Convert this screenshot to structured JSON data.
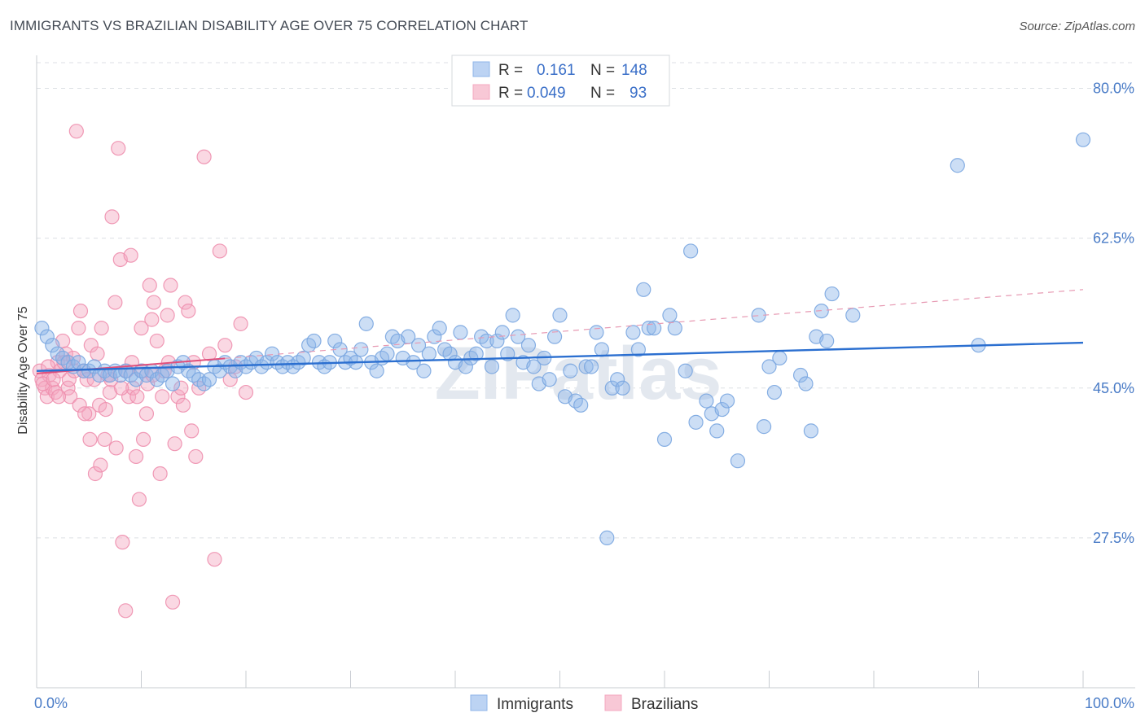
{
  "header": {
    "title": "IMMIGRANTS VS BRAZILIAN DISABILITY AGE OVER 75 CORRELATION CHART",
    "source": "Source: ZipAtlas.com"
  },
  "watermark": "ZIPatlas",
  "chart_data": {
    "type": "scatter",
    "title": "IMMIGRANTS VS BRAZILIAN DISABILITY AGE OVER 75 CORRELATION CHART",
    "xlabel": "",
    "ylabel": "Disability Age Over 75",
    "xlim": [
      0,
      100
    ],
    "ylim": [
      10,
      83
    ],
    "x_tick_labels": [
      "0.0%",
      "100.0%"
    ],
    "y_ticks": [
      27.5,
      45.0,
      62.5,
      80.0
    ],
    "y_tick_labels": [
      "27.5%",
      "45.0%",
      "62.5%",
      "80.0%"
    ],
    "grid": true,
    "legend_position": "bottom-center",
    "stats_box": {
      "rows": [
        {
          "r_label": "R =",
          "r_value": "0.161",
          "n_label": "N =",
          "n_value": "148"
        },
        {
          "r_label": "R =",
          "r_value": "0.049",
          "n_label": "N =",
          "n_value": "93"
        }
      ]
    },
    "series": [
      {
        "name": "Immigrants",
        "color": "#8fb6e8",
        "line_color": "#2b6fd0",
        "trend": {
          "x": [
            0,
            100
          ],
          "y": [
            47.0,
            50.3
          ],
          "style": "solid"
        },
        "points": [
          [
            0.5,
            52
          ],
          [
            1.0,
            51
          ],
          [
            1.5,
            50
          ],
          [
            2,
            49
          ],
          [
            2.5,
            48.5
          ],
          [
            3,
            48
          ],
          [
            3.5,
            47.5
          ],
          [
            4,
            48
          ],
          [
            4.5,
            47
          ],
          [
            5,
            47
          ],
          [
            5.5,
            47.5
          ],
          [
            6,
            46.5
          ],
          [
            6.5,
            47
          ],
          [
            7,
            46.5
          ],
          [
            7.5,
            47
          ],
          [
            8,
            46.5
          ],
          [
            8.5,
            47
          ],
          [
            9,
            46.5
          ],
          [
            9.5,
            46
          ],
          [
            10,
            47
          ],
          [
            10.5,
            46.5
          ],
          [
            11,
            47
          ],
          [
            11.5,
            46
          ],
          [
            12,
            46.5
          ],
          [
            12.5,
            47
          ],
          [
            13,
            45.5
          ],
          [
            13.5,
            47.5
          ],
          [
            14,
            48
          ],
          [
            14.5,
            47
          ],
          [
            15,
            46.5
          ],
          [
            15.5,
            46
          ],
          [
            16,
            45.5
          ],
          [
            16.5,
            46
          ],
          [
            17,
            47.5
          ],
          [
            17.5,
            47
          ],
          [
            18,
            48
          ],
          [
            18.5,
            47.5
          ],
          [
            19,
            47
          ],
          [
            19.5,
            48
          ],
          [
            20,
            47.5
          ],
          [
            20.5,
            48
          ],
          [
            21,
            48.5
          ],
          [
            21.5,
            47.5
          ],
          [
            22,
            48
          ],
          [
            22.5,
            49
          ],
          [
            23,
            48
          ],
          [
            23.5,
            47.5
          ],
          [
            24,
            48
          ],
          [
            24.5,
            47.5
          ],
          [
            25,
            48
          ],
          [
            25.5,
            48.5
          ],
          [
            26,
            50
          ],
          [
            26.5,
            50.5
          ],
          [
            27,
            48
          ],
          [
            27.5,
            47.5
          ],
          [
            28,
            48
          ],
          [
            28.5,
            50.5
          ],
          [
            29,
            49.5
          ],
          [
            29.5,
            48
          ],
          [
            30,
            48.5
          ],
          [
            30.5,
            48
          ],
          [
            31,
            49.5
          ],
          [
            31.5,
            52.5
          ],
          [
            32,
            48
          ],
          [
            32.5,
            47
          ],
          [
            33,
            48.5
          ],
          [
            33.5,
            49
          ],
          [
            34,
            51
          ],
          [
            34.5,
            50.5
          ],
          [
            35,
            48.5
          ],
          [
            35.5,
            51
          ],
          [
            36,
            48
          ],
          [
            36.5,
            50
          ],
          [
            37,
            47
          ],
          [
            37.5,
            49
          ],
          [
            38,
            51
          ],
          [
            38.5,
            52
          ],
          [
            39,
            49.5
          ],
          [
            39.5,
            49
          ],
          [
            40,
            48
          ],
          [
            40.5,
            51.5
          ],
          [
            41,
            47.5
          ],
          [
            41.5,
            48.5
          ],
          [
            42,
            49
          ],
          [
            42.5,
            51
          ],
          [
            43,
            50.5
          ],
          [
            43.5,
            47.5
          ],
          [
            44,
            50.5
          ],
          [
            44.5,
            51.5
          ],
          [
            45,
            49
          ],
          [
            45.5,
            53.5
          ],
          [
            46,
            51
          ],
          [
            46.5,
            48
          ],
          [
            47,
            50
          ],
          [
            47.5,
            47.5
          ],
          [
            48,
            45.5
          ],
          [
            48.5,
            48.5
          ],
          [
            49,
            46
          ],
          [
            49.5,
            51
          ],
          [
            50,
            53.5
          ],
          [
            50.5,
            44
          ],
          [
            51,
            47
          ],
          [
            51.5,
            43.5
          ],
          [
            52,
            43
          ],
          [
            52.5,
            47.5
          ],
          [
            53,
            47.5
          ],
          [
            53.5,
            51.5
          ],
          [
            54,
            49.5
          ],
          [
            54.5,
            27.5
          ],
          [
            55,
            45
          ],
          [
            55.5,
            46
          ],
          [
            56,
            45
          ],
          [
            57,
            51.5
          ],
          [
            57.5,
            49.5
          ],
          [
            58,
            56.5
          ],
          [
            58.5,
            52
          ],
          [
            59,
            52
          ],
          [
            60,
            39
          ],
          [
            60.5,
            53.5
          ],
          [
            61,
            52
          ],
          [
            62,
            47
          ],
          [
            62.5,
            61
          ],
          [
            63,
            41
          ],
          [
            64,
            43.5
          ],
          [
            64.5,
            42
          ],
          [
            65,
            40
          ],
          [
            65.5,
            42.5
          ],
          [
            66,
            43.5
          ],
          [
            67,
            36.5
          ],
          [
            69,
            53.5
          ],
          [
            69.5,
            40.5
          ],
          [
            70,
            47.5
          ],
          [
            70.5,
            44.5
          ],
          [
            71,
            48.5
          ],
          [
            73,
            46.5
          ],
          [
            73.5,
            45.5
          ],
          [
            74,
            40
          ],
          [
            74.5,
            51
          ],
          [
            75,
            54
          ],
          [
            75.5,
            50.5
          ],
          [
            76,
            56
          ],
          [
            78,
            53.5
          ],
          [
            88,
            71
          ],
          [
            90,
            50
          ],
          [
            100,
            74
          ]
        ]
      },
      {
        "name": "Brazilians",
        "color": "#f4a8c0",
        "line_color": "#e0507c",
        "trend": {
          "x": [
            0,
            100
          ],
          "y": [
            46.7,
            56.5
          ],
          "style": "dashed"
        },
        "points": [
          [
            0.3,
            47
          ],
          [
            0.5,
            46
          ],
          [
            0.8,
            45
          ],
          [
            1,
            44
          ],
          [
            1.2,
            46.5
          ],
          [
            1.5,
            45
          ],
          [
            1.8,
            44.5
          ],
          [
            2,
            48
          ],
          [
            2.2,
            47
          ],
          [
            2.5,
            50.5
          ],
          [
            2.8,
            49
          ],
          [
            3,
            45
          ],
          [
            3.2,
            44
          ],
          [
            3.5,
            48.5
          ],
          [
            3.8,
            75
          ],
          [
            4,
            52
          ],
          [
            4.2,
            54
          ],
          [
            4.5,
            47
          ],
          [
            4.8,
            46
          ],
          [
            5,
            42
          ],
          [
            5.2,
            50
          ],
          [
            5.5,
            46
          ],
          [
            5.8,
            49
          ],
          [
            6,
            43
          ],
          [
            6.2,
            52
          ],
          [
            6.5,
            39
          ],
          [
            6.8,
            46.5
          ],
          [
            7,
            44.5
          ],
          [
            7.2,
            65
          ],
          [
            7.5,
            55
          ],
          [
            7.8,
            73
          ],
          [
            8,
            60
          ],
          [
            8.2,
            27
          ],
          [
            8.5,
            19
          ],
          [
            8.8,
            44
          ],
          [
            9,
            60.5
          ],
          [
            9.2,
            45
          ],
          [
            9.5,
            37
          ],
          [
            9.8,
            32
          ],
          [
            10,
            52
          ],
          [
            10.2,
            39
          ],
          [
            10.5,
            42
          ],
          [
            10.8,
            57
          ],
          [
            11,
            53
          ],
          [
            11.2,
            55
          ],
          [
            11.5,
            50.5
          ],
          [
            11.8,
            35
          ],
          [
            12,
            44
          ],
          [
            12.2,
            47
          ],
          [
            12.5,
            53.5
          ],
          [
            12.8,
            57
          ],
          [
            13,
            20
          ],
          [
            13.2,
            38.5
          ],
          [
            13.5,
            44
          ],
          [
            13.8,
            45
          ],
          [
            14,
            43
          ],
          [
            14.2,
            55
          ],
          [
            14.5,
            54
          ],
          [
            14.8,
            40
          ],
          [
            15,
            48
          ],
          [
            15.2,
            37
          ],
          [
            15.5,
            45
          ],
          [
            16,
            72
          ],
          [
            16.5,
            49
          ],
          [
            17,
            25
          ],
          [
            17.5,
            61
          ],
          [
            18,
            50
          ],
          [
            18.5,
            46
          ],
          [
            19,
            47.5
          ],
          [
            19.5,
            52.5
          ],
          [
            20,
            44.5
          ],
          [
            0.6,
            45.5
          ],
          [
            1.1,
            47.5
          ],
          [
            1.6,
            46
          ],
          [
            2.1,
            44
          ],
          [
            2.6,
            48
          ],
          [
            3.1,
            46
          ],
          [
            3.6,
            47
          ],
          [
            4.1,
            43
          ],
          [
            4.6,
            42
          ],
          [
            5.1,
            39
          ],
          [
            5.6,
            35
          ],
          [
            6.1,
            36
          ],
          [
            6.6,
            42.5
          ],
          [
            7.1,
            46
          ],
          [
            7.6,
            38
          ],
          [
            8.1,
            45
          ],
          [
            8.6,
            47
          ],
          [
            9.1,
            48
          ],
          [
            9.6,
            44
          ],
          [
            10.1,
            47
          ],
          [
            10.6,
            45.5
          ],
          [
            11.1,
            46.5
          ],
          [
            12.6,
            48
          ]
        ]
      }
    ]
  }
}
